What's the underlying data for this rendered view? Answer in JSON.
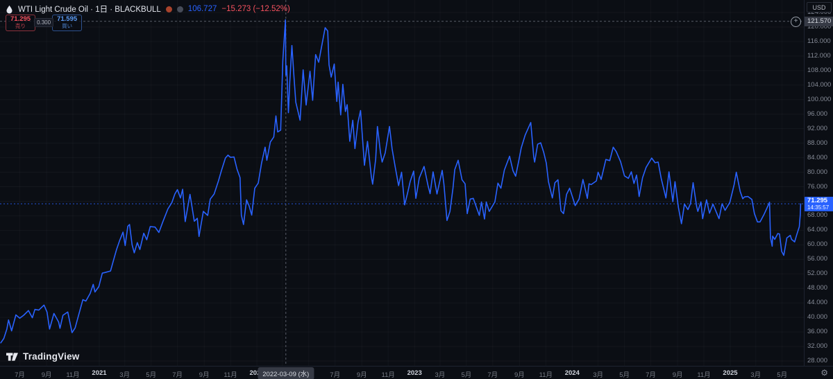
{
  "header": {
    "title": "WTI Light Crude Oil · 1日 · BLACKBULL",
    "price": "106.727",
    "change": "−15.273 (−12.52%)"
  },
  "order_panel": {
    "sell_price": "71.295",
    "sell_label": "売り",
    "spread": "0.300",
    "buy_price": "71.595",
    "buy_label": "買い"
  },
  "price_axis": {
    "currency": "USD",
    "crosshair_price": "121.570",
    "last_price": "71.295",
    "countdown": "14:35:57"
  },
  "time_axis": {
    "crosshair_date": "2022-03-09 (水)"
  },
  "branding": {
    "logo_text": "TradingView"
  },
  "colors": {
    "background": "#0b0e14",
    "line": "#2962ff",
    "sell_red": "#f7525f",
    "buy_blue": "#5b9cf6",
    "label_bg": "#363a45"
  },
  "chart_data": {
    "type": "line",
    "title": "WTI Light Crude Oil",
    "timeframe": "1日",
    "source": "BLACKBULL",
    "currency": "USD",
    "line_color": "#2962ff",
    "grid": true,
    "ylim": [
      26.7,
      127.4
    ],
    "y_ticks": [
      124,
      120,
      116,
      112,
      108,
      104,
      100,
      96,
      92,
      88,
      84,
      80,
      76,
      72,
      68,
      64,
      60,
      56,
      52,
      48,
      44,
      40,
      36,
      32,
      28
    ],
    "last_price": 71.295,
    "crosshair": {
      "date": "2022-03-09",
      "price": 121.57
    },
    "x_ticks": [
      {
        "label": "7月",
        "date": "2020-07-01",
        "major": false
      },
      {
        "label": "9月",
        "date": "2020-09-01",
        "major": false
      },
      {
        "label": "11月",
        "date": "2020-11-01",
        "major": false
      },
      {
        "label": "2021",
        "date": "2021-01-01",
        "major": true
      },
      {
        "label": "3月",
        "date": "2021-03-01",
        "major": false
      },
      {
        "label": "5月",
        "date": "2021-05-01",
        "major": false
      },
      {
        "label": "7月",
        "date": "2021-07-01",
        "major": false
      },
      {
        "label": "9月",
        "date": "2021-09-01",
        "major": false
      },
      {
        "label": "11月",
        "date": "2021-11-01",
        "major": false
      },
      {
        "label": "2022",
        "date": "2022-01-01",
        "major": true
      },
      {
        "label": "3月",
        "date": "2022-03-01",
        "major": false
      },
      {
        "label": "5月",
        "date": "2022-05-01",
        "major": false
      },
      {
        "label": "7月",
        "date": "2022-07-01",
        "major": false
      },
      {
        "label": "9月",
        "date": "2022-09-01",
        "major": false
      },
      {
        "label": "11月",
        "date": "2022-11-01",
        "major": false
      },
      {
        "label": "2023",
        "date": "2023-01-01",
        "major": true
      },
      {
        "label": "3月",
        "date": "2023-03-01",
        "major": false
      },
      {
        "label": "5月",
        "date": "2023-05-01",
        "major": false
      },
      {
        "label": "7月",
        "date": "2023-07-01",
        "major": false
      },
      {
        "label": "9月",
        "date": "2023-09-01",
        "major": false
      },
      {
        "label": "11月",
        "date": "2023-11-01",
        "major": false
      },
      {
        "label": "2024",
        "date": "2024-01-01",
        "major": true
      },
      {
        "label": "3月",
        "date": "2024-03-01",
        "major": false
      },
      {
        "label": "5月",
        "date": "2024-05-01",
        "major": false
      },
      {
        "label": "7月",
        "date": "2024-07-01",
        "major": false
      },
      {
        "label": "9月",
        "date": "2024-09-01",
        "major": false
      },
      {
        "label": "11月",
        "date": "2024-11-01",
        "major": false
      },
      {
        "label": "2025",
        "date": "2025-01-01",
        "major": true
      },
      {
        "label": "3月",
        "date": "2025-03-01",
        "major": false
      },
      {
        "label": "5月",
        "date": "2025-05-01",
        "major": false
      }
    ],
    "series": [
      [
        "2020-05-18",
        33.0
      ],
      [
        "2020-05-25",
        34.2
      ],
      [
        "2020-06-01",
        36.8
      ],
      [
        "2020-06-05",
        39.3
      ],
      [
        "2020-06-12",
        36.3
      ],
      [
        "2020-06-22",
        40.7
      ],
      [
        "2020-07-01",
        39.8
      ],
      [
        "2020-07-10",
        40.6
      ],
      [
        "2020-07-21",
        41.9
      ],
      [
        "2020-07-30",
        39.9
      ],
      [
        "2020-08-05",
        42.2
      ],
      [
        "2020-08-14",
        42.0
      ],
      [
        "2020-08-26",
        43.4
      ],
      [
        "2020-09-02",
        41.5
      ],
      [
        "2020-09-08",
        36.8
      ],
      [
        "2020-09-18",
        41.1
      ],
      [
        "2020-09-29",
        38.7
      ],
      [
        "2020-10-02",
        37.0
      ],
      [
        "2020-10-09",
        40.6
      ],
      [
        "2020-10-20",
        41.5
      ],
      [
        "2020-10-30",
        35.8
      ],
      [
        "2020-11-06",
        37.1
      ],
      [
        "2020-11-13",
        40.1
      ],
      [
        "2020-11-24",
        44.9
      ],
      [
        "2020-12-01",
        44.5
      ],
      [
        "2020-12-11",
        46.6
      ],
      [
        "2020-12-18",
        49.1
      ],
      [
        "2020-12-22",
        47.0
      ],
      [
        "2020-12-31",
        48.5
      ],
      [
        "2021-01-08",
        52.2
      ],
      [
        "2021-01-15",
        52.4
      ],
      [
        "2021-01-27",
        52.8
      ],
      [
        "2021-02-04",
        56.2
      ],
      [
        "2021-02-10",
        58.7
      ],
      [
        "2021-02-17",
        61.1
      ],
      [
        "2021-02-25",
        63.5
      ],
      [
        "2021-03-02",
        59.8
      ],
      [
        "2021-03-08",
        65.1
      ],
      [
        "2021-03-12",
        65.6
      ],
      [
        "2021-03-18",
        60.0
      ],
      [
        "2021-03-23",
        57.8
      ],
      [
        "2021-03-30",
        60.6
      ],
      [
        "2021-04-05",
        58.7
      ],
      [
        "2021-04-14",
        63.2
      ],
      [
        "2021-04-21",
        61.4
      ],
      [
        "2021-04-29",
        65.0
      ],
      [
        "2021-05-10",
        64.9
      ],
      [
        "2021-05-19",
        63.4
      ],
      [
        "2021-05-28",
        66.3
      ],
      [
        "2021-06-09",
        69.9
      ],
      [
        "2021-06-18",
        71.6
      ],
      [
        "2021-06-25",
        74.0
      ],
      [
        "2021-07-01",
        75.2
      ],
      [
        "2021-07-08",
        72.9
      ],
      [
        "2021-07-13",
        75.3
      ],
      [
        "2021-07-19",
        66.4
      ],
      [
        "2021-07-30",
        73.9
      ],
      [
        "2021-08-09",
        66.5
      ],
      [
        "2021-08-16",
        67.3
      ],
      [
        "2021-08-20",
        62.3
      ],
      [
        "2021-08-30",
        69.2
      ],
      [
        "2021-09-09",
        68.1
      ],
      [
        "2021-09-15",
        72.6
      ],
      [
        "2021-09-24",
        74.0
      ],
      [
        "2021-10-04",
        77.6
      ],
      [
        "2021-10-11",
        80.5
      ],
      [
        "2021-10-20",
        83.9
      ],
      [
        "2021-10-26",
        84.7
      ],
      [
        "2021-11-01",
        84.1
      ],
      [
        "2021-11-09",
        84.2
      ],
      [
        "2021-11-16",
        80.8
      ],
      [
        "2021-11-23",
        78.5
      ],
      [
        "2021-11-26",
        68.2
      ],
      [
        "2021-12-01",
        65.6
      ],
      [
        "2021-12-08",
        72.4
      ],
      [
        "2021-12-14",
        70.7
      ],
      [
        "2021-12-20",
        68.2
      ],
      [
        "2021-12-27",
        75.6
      ],
      [
        "2022-01-04",
        77.0
      ],
      [
        "2022-01-12",
        82.6
      ],
      [
        "2022-01-20",
        86.9
      ],
      [
        "2022-01-24",
        83.3
      ],
      [
        "2022-02-01",
        88.3
      ],
      [
        "2022-02-09",
        89.7
      ],
      [
        "2022-02-14",
        95.5
      ],
      [
        "2022-02-18",
        91.1
      ],
      [
        "2022-02-25",
        91.6
      ],
      [
        "2022-03-02",
        110.6
      ],
      [
        "2022-03-08",
        122.0
      ],
      [
        "2022-03-09",
        106.727
      ],
      [
        "2022-03-11",
        109.3
      ],
      [
        "2022-03-15",
        96.4
      ],
      [
        "2022-03-18",
        104.7
      ],
      [
        "2022-03-23",
        114.9
      ],
      [
        "2022-03-28",
        106.0
      ],
      [
        "2022-04-01",
        99.3
      ],
      [
        "2022-04-11",
        94.3
      ],
      [
        "2022-04-18",
        108.2
      ],
      [
        "2022-04-25",
        98.5
      ],
      [
        "2022-05-04",
        107.8
      ],
      [
        "2022-05-10",
        99.8
      ],
      [
        "2022-05-17",
        112.4
      ],
      [
        "2022-05-24",
        110.3
      ],
      [
        "2022-05-31",
        114.7
      ],
      [
        "2022-06-08",
        119.8
      ],
      [
        "2022-06-14",
        118.9
      ],
      [
        "2022-06-17",
        109.6
      ],
      [
        "2022-06-22",
        106.2
      ],
      [
        "2022-06-29",
        109.8
      ],
      [
        "2022-07-05",
        99.5
      ],
      [
        "2022-07-08",
        104.8
      ],
      [
        "2022-07-14",
        95.8
      ],
      [
        "2022-07-19",
        104.2
      ],
      [
        "2022-07-25",
        96.7
      ],
      [
        "2022-07-29",
        98.6
      ],
      [
        "2022-08-04",
        88.5
      ],
      [
        "2022-08-11",
        94.3
      ],
      [
        "2022-08-16",
        86.5
      ],
      [
        "2022-08-23",
        93.7
      ],
      [
        "2022-08-29",
        97.0
      ],
      [
        "2022-09-07",
        81.9
      ],
      [
        "2022-09-14",
        88.5
      ],
      [
        "2022-09-23",
        78.7
      ],
      [
        "2022-09-26",
        76.7
      ],
      [
        "2022-10-03",
        83.6
      ],
      [
        "2022-10-07",
        92.6
      ],
      [
        "2022-10-14",
        85.6
      ],
      [
        "2022-10-18",
        82.8
      ],
      [
        "2022-10-25",
        85.3
      ],
      [
        "2022-11-04",
        92.6
      ],
      [
        "2022-11-10",
        86.5
      ],
      [
        "2022-11-17",
        81.6
      ],
      [
        "2022-11-25",
        76.3
      ],
      [
        "2022-12-02",
        80.0
      ],
      [
        "2022-12-09",
        71.0
      ],
      [
        "2022-12-16",
        74.3
      ],
      [
        "2022-12-22",
        77.5
      ],
      [
        "2022-12-30",
        80.3
      ],
      [
        "2023-01-04",
        72.8
      ],
      [
        "2023-01-12",
        78.4
      ],
      [
        "2023-01-23",
        81.6
      ],
      [
        "2023-02-01",
        76.4
      ],
      [
        "2023-02-06",
        74.1
      ],
      [
        "2023-02-13",
        80.1
      ],
      [
        "2023-02-22",
        74.0
      ],
      [
        "2023-03-06",
        80.5
      ],
      [
        "2023-03-10",
        76.7
      ],
      [
        "2023-03-17",
        66.7
      ],
      [
        "2023-03-24",
        69.2
      ],
      [
        "2023-03-31",
        75.7
      ],
      [
        "2023-04-04",
        80.7
      ],
      [
        "2023-04-12",
        83.3
      ],
      [
        "2023-04-21",
        77.9
      ],
      [
        "2023-04-28",
        76.8
      ],
      [
        "2023-05-03",
        68.6
      ],
      [
        "2023-05-10",
        72.6
      ],
      [
        "2023-05-17",
        72.8
      ],
      [
        "2023-05-31",
        68.1
      ],
      [
        "2023-06-05",
        71.8
      ],
      [
        "2023-06-12",
        67.1
      ],
      [
        "2023-06-16",
        71.8
      ],
      [
        "2023-06-23",
        69.2
      ],
      [
        "2023-07-06",
        71.8
      ],
      [
        "2023-07-13",
        77.0
      ],
      [
        "2023-07-20",
        75.6
      ],
      [
        "2023-07-28",
        80.6
      ],
      [
        "2023-08-09",
        84.4
      ],
      [
        "2023-08-17",
        80.4
      ],
      [
        "2023-08-23",
        78.9
      ],
      [
        "2023-08-31",
        83.6
      ],
      [
        "2023-09-05",
        86.7
      ],
      [
        "2023-09-14",
        90.2
      ],
      [
        "2023-09-27",
        93.7
      ],
      [
        "2023-10-04",
        84.2
      ],
      [
        "2023-10-06",
        82.8
      ],
      [
        "2023-10-13",
        87.7
      ],
      [
        "2023-10-20",
        88.1
      ],
      [
        "2023-10-27",
        85.5
      ],
      [
        "2023-11-02",
        82.5
      ],
      [
        "2023-11-07",
        77.4
      ],
      [
        "2023-11-16",
        72.9
      ],
      [
        "2023-11-22",
        77.1
      ],
      [
        "2023-11-29",
        77.9
      ],
      [
        "2023-12-06",
        69.4
      ],
      [
        "2023-12-12",
        68.6
      ],
      [
        "2023-12-19",
        73.9
      ],
      [
        "2023-12-26",
        75.6
      ],
      [
        "2024-01-03",
        72.7
      ],
      [
        "2024-01-08",
        70.8
      ],
      [
        "2024-01-17",
        72.6
      ],
      [
        "2024-01-26",
        78.0
      ],
      [
        "2024-02-05",
        72.8
      ],
      [
        "2024-02-09",
        76.8
      ],
      [
        "2024-02-14",
        76.6
      ],
      [
        "2024-02-26",
        77.6
      ],
      [
        "2024-03-01",
        80.0
      ],
      [
        "2024-03-08",
        78.0
      ],
      [
        "2024-03-19",
        83.5
      ],
      [
        "2024-03-28",
        83.2
      ],
      [
        "2024-04-05",
        86.9
      ],
      [
        "2024-04-12",
        85.7
      ],
      [
        "2024-04-22",
        82.9
      ],
      [
        "2024-05-01",
        79.0
      ],
      [
        "2024-05-10",
        78.3
      ],
      [
        "2024-05-17",
        80.1
      ],
      [
        "2024-05-23",
        76.9
      ],
      [
        "2024-05-29",
        79.2
      ],
      [
        "2024-06-04",
        73.3
      ],
      [
        "2024-06-12",
        78.5
      ],
      [
        "2024-06-20",
        81.3
      ],
      [
        "2024-07-03",
        83.9
      ],
      [
        "2024-07-11",
        82.6
      ],
      [
        "2024-07-18",
        82.8
      ],
      [
        "2024-07-25",
        78.3
      ],
      [
        "2024-08-05",
        72.9
      ],
      [
        "2024-08-12",
        80.1
      ],
      [
        "2024-08-21",
        71.9
      ],
      [
        "2024-08-26",
        77.4
      ],
      [
        "2024-09-03",
        70.3
      ],
      [
        "2024-09-10",
        65.8
      ],
      [
        "2024-09-17",
        71.2
      ],
      [
        "2024-09-25",
        69.7
      ],
      [
        "2024-10-01",
        71.4
      ],
      [
        "2024-10-07",
        77.1
      ],
      [
        "2024-10-15",
        70.6
      ],
      [
        "2024-10-18",
        69.2
      ],
      [
        "2024-10-25",
        71.8
      ],
      [
        "2024-10-29",
        67.2
      ],
      [
        "2024-11-07",
        72.4
      ],
      [
        "2024-11-14",
        68.7
      ],
      [
        "2024-11-22",
        71.2
      ],
      [
        "2024-12-06",
        67.2
      ],
      [
        "2024-12-13",
        71.3
      ],
      [
        "2024-12-20",
        69.5
      ],
      [
        "2024-12-31",
        71.7
      ],
      [
        "2025-01-10",
        76.6
      ],
      [
        "2025-01-15",
        80.0
      ],
      [
        "2025-01-24",
        74.7
      ],
      [
        "2025-01-30",
        72.7
      ],
      [
        "2025-02-03",
        73.2
      ],
      [
        "2025-02-11",
        73.3
      ],
      [
        "2025-02-20",
        72.5
      ],
      [
        "2025-02-26",
        68.6
      ],
      [
        "2025-03-05",
        66.3
      ],
      [
        "2025-03-11",
        66.3
      ],
      [
        "2025-03-20",
        68.3
      ],
      [
        "2025-04-02",
        71.7
      ],
      [
        "2025-04-04",
        62.0
      ],
      [
        "2025-04-08",
        59.6
      ],
      [
        "2025-04-09",
        62.4
      ],
      [
        "2025-04-14",
        61.5
      ],
      [
        "2025-04-21",
        63.1
      ],
      [
        "2025-04-25",
        63.0
      ],
      [
        "2025-04-30",
        58.2
      ],
      [
        "2025-05-05",
        57.1
      ],
      [
        "2025-05-12",
        61.9
      ],
      [
        "2025-05-20",
        62.6
      ],
      [
        "2025-05-23",
        61.5
      ],
      [
        "2025-05-30",
        60.8
      ],
      [
        "2025-06-04",
        62.8
      ],
      [
        "2025-06-10",
        65.0
      ],
      [
        "2025-06-12",
        68.2
      ],
      [
        "2025-06-13",
        71.295
      ]
    ]
  }
}
